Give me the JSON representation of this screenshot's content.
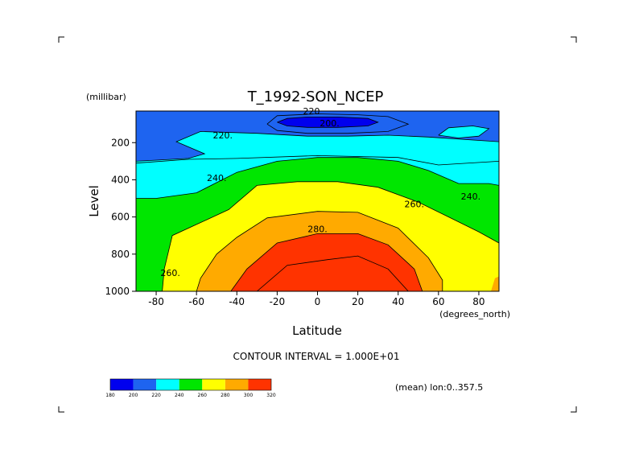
{
  "chart_data": {
    "type": "filled-contour",
    "title": "T_1992-SON_NCEP",
    "xlabel": "Latitude",
    "ylabel": "Level",
    "y_units": "(millibar)",
    "x_units": "(degrees_north)",
    "xlim": [
      -90,
      90
    ],
    "ylim": [
      1000,
      30
    ],
    "y_reversed": true,
    "x_ticks": [
      -80,
      -60,
      -40,
      -20,
      0,
      20,
      40,
      60,
      80
    ],
    "y_ticks": [
      200,
      400,
      600,
      800,
      1000
    ],
    "contour_interval_text": "CONTOUR INTERVAL = 1.000E+01",
    "footnote": "(mean) lon:0..357.5",
    "colorbar": {
      "levels": [
        180,
        200,
        220,
        240,
        260,
        280,
        300,
        320
      ],
      "colors": [
        "#0000ee",
        "#1e64f0",
        "#00ffff",
        "#00e600",
        "#ffff00",
        "#ffaa00",
        "#ff3300"
      ]
    },
    "contour_labels": [
      {
        "x": -3,
        "p": 30,
        "text": "220"
      },
      {
        "x": 6,
        "p": 95,
        "text": "200."
      },
      {
        "x": -47,
        "p": 160,
        "text": "220."
      },
      {
        "x": -50,
        "p": 390,
        "text": "240."
      },
      {
        "x": 48,
        "p": 530,
        "text": "260."
      },
      {
        "x": 76,
        "p": 490,
        "text": "240."
      },
      {
        "x": 0,
        "p": 665,
        "text": "280."
      },
      {
        "x": -73,
        "p": 900,
        "text": "260."
      }
    ],
    "regions": [
      {
        "level": 200,
        "poly": [
          [
            -90,
            30
          ],
          [
            90,
            30
          ],
          [
            90,
            300
          ],
          [
            60,
            320
          ],
          [
            40,
            280
          ],
          [
            0,
            270
          ],
          [
            -40,
            285
          ],
          [
            -64,
            290
          ],
          [
            -90,
            310
          ]
        ]
      },
      {
        "level": 180,
        "poly": [
          [
            -20,
            90
          ],
          [
            -15,
            70
          ],
          [
            -5,
            62
          ],
          [
            10,
            62
          ],
          [
            25,
            70
          ],
          [
            30,
            90
          ],
          [
            25,
            110
          ],
          [
            10,
            118
          ],
          [
            -5,
            118
          ],
          [
            -15,
            110
          ]
        ]
      },
      {
        "level": 220,
        "poly": [
          [
            -90,
            300
          ],
          [
            -64,
            285
          ],
          [
            -56,
            260
          ],
          [
            -70,
            195
          ],
          [
            -58,
            140
          ],
          [
            -30,
            150
          ],
          [
            -5,
            165
          ],
          [
            15,
            165
          ],
          [
            35,
            160
          ],
          [
            55,
            170
          ],
          [
            90,
            195
          ],
          [
            90,
            500
          ],
          [
            -90,
            500
          ]
        ]
      },
      {
        "level": 220,
        "poly": [
          [
            60,
            160
          ],
          [
            65,
            120
          ],
          [
            77,
            110
          ],
          [
            85,
            125
          ],
          [
            80,
            165
          ],
          [
            70,
            175
          ]
        ]
      },
      {
        "level": 240,
        "poly": [
          [
            -90,
            1000
          ],
          [
            -90,
            500
          ],
          [
            -80,
            500
          ],
          [
            -60,
            470
          ],
          [
            -40,
            360
          ],
          [
            -20,
            300
          ],
          [
            0,
            280
          ],
          [
            20,
            280
          ],
          [
            40,
            300
          ],
          [
            55,
            350
          ],
          [
            70,
            420
          ],
          [
            85,
            420
          ],
          [
            90,
            430
          ],
          [
            90,
            1000
          ]
        ]
      },
      {
        "level": 260,
        "poly": [
          [
            -90,
            1000
          ],
          [
            -77,
            1000
          ],
          [
            -76,
            880
          ],
          [
            -72,
            700
          ],
          [
            -60,
            640
          ],
          [
            -44,
            560
          ],
          [
            -30,
            430
          ],
          [
            -10,
            410
          ],
          [
            10,
            410
          ],
          [
            30,
            440
          ],
          [
            50,
            520
          ],
          [
            65,
            600
          ],
          [
            80,
            680
          ],
          [
            90,
            740
          ],
          [
            90,
            1000
          ]
        ]
      },
      {
        "level": 280,
        "poly": [
          [
            -60,
            1000
          ],
          [
            -58,
            930
          ],
          [
            -50,
            800
          ],
          [
            -40,
            710
          ],
          [
            -25,
            605
          ],
          [
            0,
            570
          ],
          [
            20,
            575
          ],
          [
            40,
            660
          ],
          [
            55,
            820
          ],
          [
            62,
            940
          ],
          [
            62,
            1000
          ]
        ]
      },
      {
        "level": 280,
        "poly": [
          [
            88,
            930
          ],
          [
            90,
            920
          ],
          [
            90,
            1000
          ],
          [
            86,
            1000
          ]
        ]
      },
      {
        "level": 300,
        "poly": [
          [
            -43,
            1000
          ],
          [
            -35,
            880
          ],
          [
            -20,
            740
          ],
          [
            0,
            690
          ],
          [
            20,
            690
          ],
          [
            35,
            750
          ],
          [
            48,
            880
          ],
          [
            52,
            1000
          ]
        ]
      }
    ],
    "contour_lines": [
      [
        [
          -90,
          310
        ],
        [
          -64,
          290
        ],
        [
          -40,
          285
        ],
        [
          0,
          270
        ],
        [
          40,
          280
        ],
        [
          60,
          320
        ],
        [
          90,
          300
        ]
      ],
      [
        [
          -90,
          500
        ],
        [
          -80,
          500
        ],
        [
          -60,
          470
        ],
        [
          -40,
          360
        ],
        [
          -20,
          300
        ],
        [
          0,
          280
        ],
        [
          20,
          280
        ],
        [
          40,
          300
        ],
        [
          55,
          350
        ],
        [
          70,
          420
        ],
        [
          85,
          420
        ],
        [
          90,
          430
        ]
      ],
      [
        [
          -77,
          1000
        ],
        [
          -76,
          880
        ],
        [
          -72,
          700
        ],
        [
          -60,
          640
        ],
        [
          -44,
          560
        ],
        [
          -30,
          430
        ],
        [
          -10,
          410
        ],
        [
          10,
          410
        ],
        [
          30,
          440
        ],
        [
          50,
          520
        ],
        [
          65,
          600
        ],
        [
          80,
          680
        ],
        [
          90,
          740
        ]
      ],
      [
        [
          -60,
          1000
        ],
        [
          -58,
          930
        ],
        [
          -50,
          800
        ],
        [
          -40,
          710
        ],
        [
          -25,
          605
        ],
        [
          0,
          570
        ],
        [
          20,
          575
        ],
        [
          40,
          660
        ],
        [
          55,
          820
        ],
        [
          62,
          940
        ],
        [
          62,
          1000
        ]
      ],
      [
        [
          -43,
          1000
        ],
        [
          -35,
          880
        ],
        [
          -20,
          740
        ],
        [
          0,
          690
        ],
        [
          20,
          690
        ],
        [
          35,
          750
        ],
        [
          48,
          880
        ],
        [
          52,
          1000
        ]
      ],
      [
        [
          -30,
          1000
        ],
        [
          -15,
          860
        ],
        [
          5,
          830
        ],
        [
          20,
          810
        ],
        [
          35,
          880
        ],
        [
          45,
          1000
        ]
      ],
      [
        [
          -20,
          90
        ],
        [
          -15,
          70
        ],
        [
          -5,
          62
        ],
        [
          10,
          62
        ],
        [
          25,
          70
        ],
        [
          30,
          90
        ],
        [
          25,
          110
        ],
        [
          10,
          118
        ],
        [
          -5,
          118
        ],
        [
          -15,
          110
        ],
        [
          -20,
          90
        ]
      ],
      [
        [
          -25,
          100
        ],
        [
          -20,
          55
        ],
        [
          0,
          45
        ],
        [
          20,
          50
        ],
        [
          35,
          60
        ],
        [
          45,
          100
        ],
        [
          35,
          140
        ],
        [
          15,
          150
        ],
        [
          -5,
          150
        ],
        [
          -20,
          135
        ],
        [
          -25,
          100
        ]
      ],
      [
        [
          -90,
          300
        ],
        [
          -64,
          285
        ],
        [
          -56,
          260
        ],
        [
          -70,
          195
        ],
        [
          -58,
          140
        ],
        [
          -30,
          150
        ],
        [
          -5,
          165
        ],
        [
          15,
          165
        ],
        [
          35,
          160
        ],
        [
          55,
          170
        ],
        [
          90,
          195
        ]
      ],
      [
        [
          60,
          160
        ],
        [
          65,
          120
        ],
        [
          77,
          110
        ],
        [
          85,
          125
        ],
        [
          80,
          165
        ],
        [
          70,
          175
        ],
        [
          60,
          160
        ]
      ]
    ]
  }
}
